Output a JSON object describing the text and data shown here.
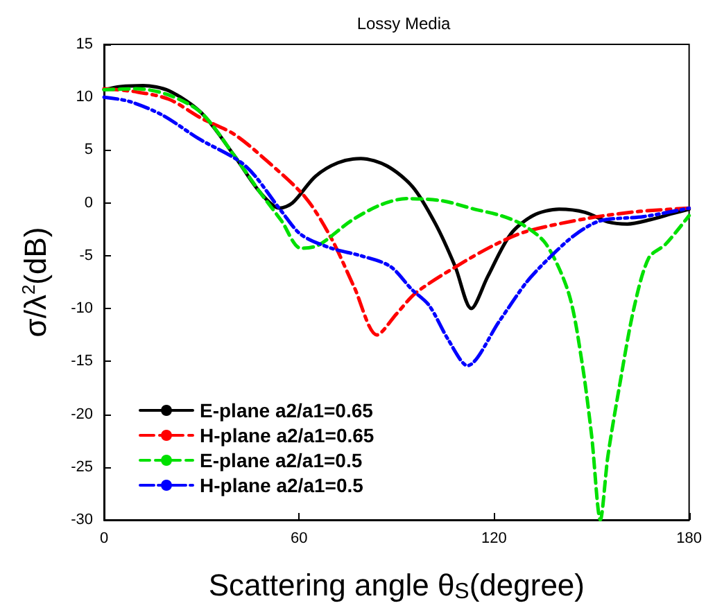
{
  "chart_data": {
    "type": "line",
    "title": "Lossy Media",
    "xlabel": "Scattering angle θ$_{S}$(degree)",
    "ylabel": "σ/λ$^{2}$(dB)",
    "xlim": [
      0,
      180
    ],
    "xticks": [
      0,
      60,
      120,
      180
    ],
    "ylim": [
      -30,
      15
    ],
    "yticks": [
      -30,
      -25,
      -20,
      -15,
      -10,
      -5,
      0,
      5,
      10,
      15
    ],
    "grid": false,
    "legend": "bottom left",
    "marker": "none",
    "series": [
      {
        "name": "E-plane a2/a1=0.65",
        "color": "#000000",
        "line_style": "solid",
        "x": [
          0,
          5,
          12,
          20,
          30,
          40,
          48,
          54,
          58,
          65,
          72,
          79,
          87,
          95,
          102,
          108,
          113,
          118,
          125,
          132,
          140,
          148,
          155,
          161,
          168,
          175,
          180
        ],
        "values": [
          10.7,
          11,
          11.1,
          10.6,
          8.5,
          4.5,
          1,
          -0.5,
          0,
          2.5,
          3.8,
          4.2,
          3.5,
          1.5,
          -2,
          -6,
          -10,
          -7,
          -3,
          -1.2,
          -0.6,
          -0.9,
          -1.8,
          -2,
          -1.6,
          -1,
          -0.6
        ]
      },
      {
        "name": "H-plane a2/a1=0.65",
        "color": "#ff0000",
        "line_style": "dashdot",
        "x": [
          0,
          10,
          20,
          30,
          40,
          50,
          62,
          70,
          77,
          84,
          90,
          96,
          109,
          120,
          130,
          150,
          165,
          180
        ],
        "values": [
          10.8,
          10.5,
          9.8,
          8,
          6.5,
          4,
          0.5,
          -3.4,
          -8,
          -12.5,
          -10.5,
          -8.5,
          -5.9,
          -4,
          -2.7,
          -1.4,
          -0.8,
          -0.5
        ]
      },
      {
        "name": "E-plane a2/a1=0.5",
        "color": "#00e000",
        "line_style": "dashed",
        "x": [
          0,
          10,
          20,
          30,
          40,
          48,
          54.6,
          60.6,
          66,
          76,
          85,
          93,
          104,
          114,
          122,
          129,
          136,
          143,
          147,
          150,
          152.7,
          155,
          158.6,
          163,
          167.6,
          172.8,
          180
        ],
        "values": [
          10.7,
          10.8,
          10.2,
          8.5,
          4.5,
          1,
          -1.7,
          -4.3,
          -4,
          -1.7,
          -0.2,
          0.4,
          0.2,
          -0.6,
          -1.2,
          -2.1,
          -3.9,
          -8.6,
          -15,
          -22,
          -30,
          -24,
          -17.3,
          -10,
          -5.2,
          -3.9,
          -1.2
        ]
      },
      {
        "name": "H-plane a2/a1=0.5",
        "color": "#0000ff",
        "line_style": "dashdotdot",
        "x": [
          0,
          7.8,
          18,
          29,
          43.5,
          54.6,
          60.6,
          70,
          79,
          88,
          94.7,
          100,
          106,
          111.8,
          121.6,
          130,
          137,
          145,
          152.7,
          166,
          180
        ],
        "values": [
          10,
          9.6,
          8.3,
          6.1,
          3.5,
          -0.8,
          -3,
          -4.3,
          -5,
          -6,
          -8.2,
          -9.7,
          -13,
          -15.4,
          -11.2,
          -7.5,
          -5.2,
          -3,
          -1.7,
          -1.3,
          -0.5
        ]
      }
    ]
  }
}
